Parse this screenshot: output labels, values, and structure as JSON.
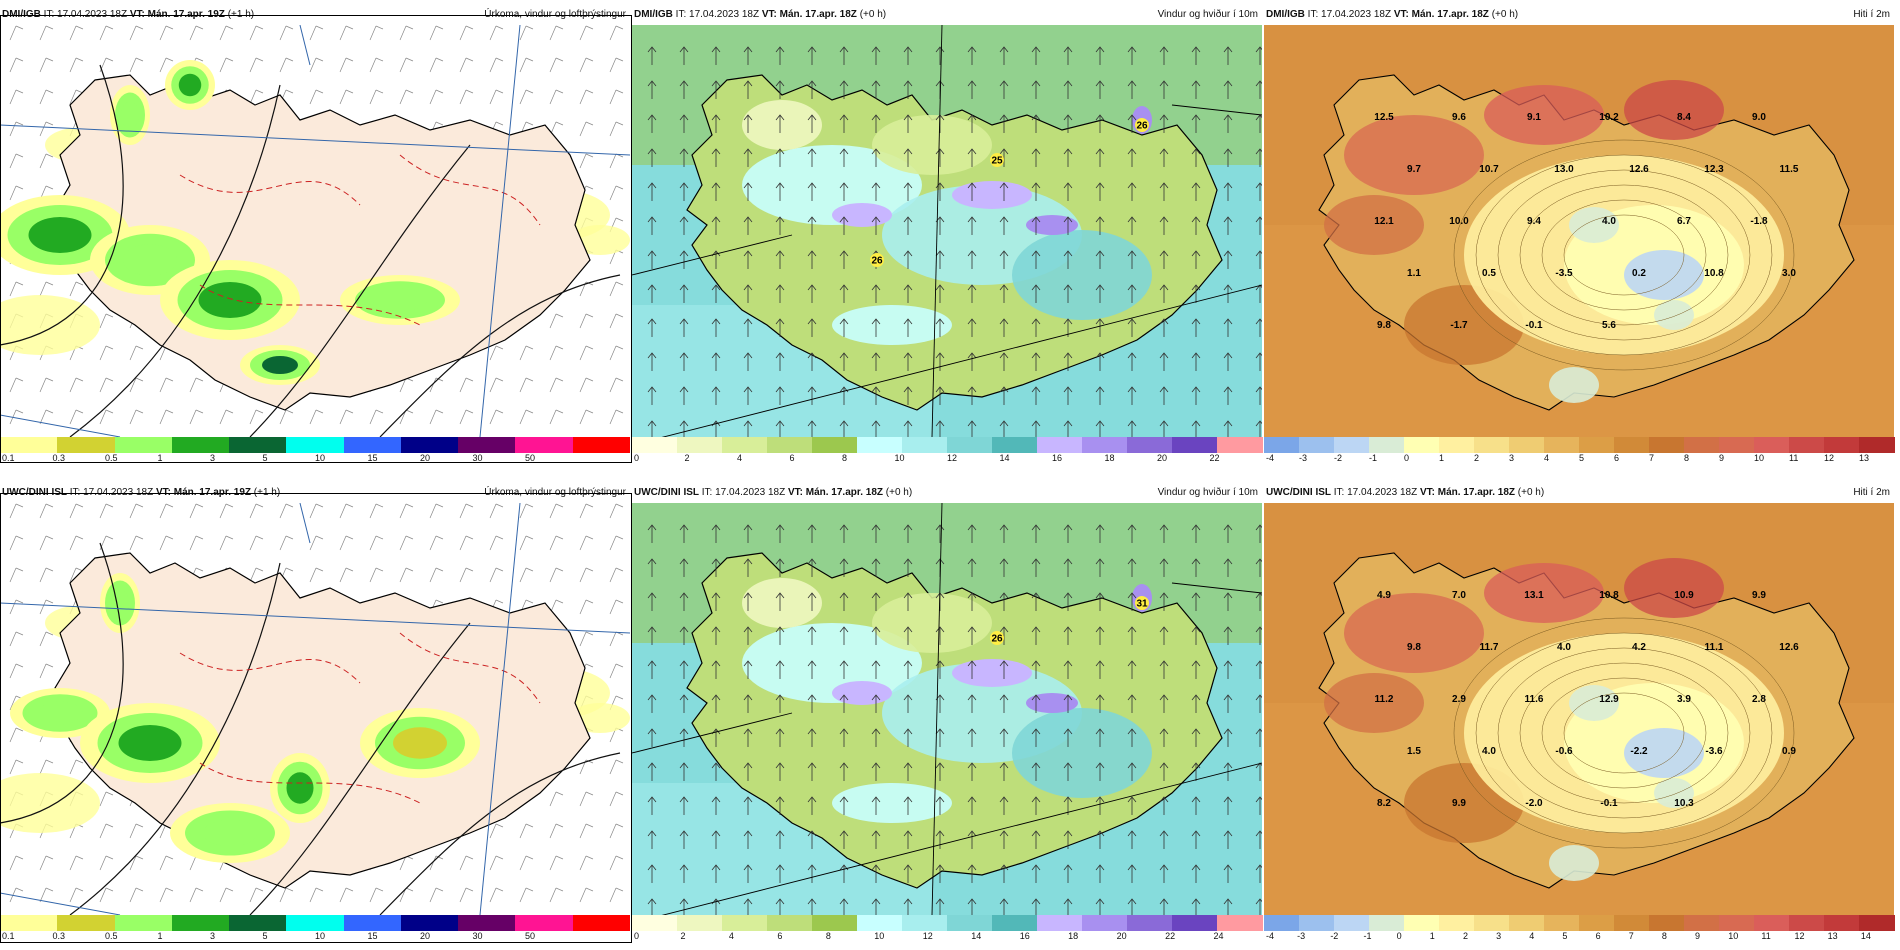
{
  "panels": [
    {
      "id": "p1",
      "left": "DMI/IGB",
      "it": "IT: 17.04.2023 18Z",
      "vt": "VT: Mán. 17.apr. 19Z",
      "offset": "(+1 h)",
      "right": "Úrkoma, vindur og loftþrýstingur",
      "type": "precip",
      "labels": [],
      "ticks": [
        "0.1",
        "0.3",
        "0.5",
        "1",
        "3",
        "5",
        "10",
        "15",
        "20",
        "30",
        "50",
        ""
      ]
    },
    {
      "id": "p2",
      "left": "DMI/IGB",
      "it": "IT: 17.04.2023 18Z",
      "vt": "VT: Mán. 17.apr. 18Z",
      "offset": "(+0 h)",
      "right": "Vindur og hviður í 10m",
      "type": "wind",
      "labels": [
        "25",
        "26",
        "26"
      ],
      "ticks": [
        "0",
        "2",
        "4",
        "6",
        "8",
        "10",
        "12",
        "14",
        "16",
        "18",
        "20",
        "22"
      ]
    },
    {
      "id": "p3",
      "left": "DMI/IGB",
      "it": "IT: 17.04.2023 18Z",
      "vt": "VT: Mán. 17.apr. 18Z",
      "offset": "(+0 h)",
      "right": "Hiti í 2m",
      "type": "temp",
      "labels": [
        "12.5",
        "9.6",
        "9.1",
        "10.2",
        "8.4",
        "9.0",
        "9.7",
        "10.7",
        "13.0",
        "12.6",
        "12.3",
        "11.5",
        "12.1",
        "10.0",
        "9.4",
        "4.0",
        "6.7",
        "-1.8",
        "1.1",
        "0.5",
        "-3.5",
        "0.2",
        "10.8",
        "3.0",
        "9.8",
        "-1.7",
        "-0.1",
        "5.6"
      ],
      "ticks": [
        "-4",
        "-3",
        "-2",
        "-1",
        "0",
        "1",
        "2",
        "3",
        "4",
        "5",
        "6",
        "7",
        "8",
        "9",
        "10",
        "11",
        "12",
        "13"
      ]
    },
    {
      "id": "p4",
      "left": "UWC/DINI ISL",
      "it": "IT: 17.04.2023 18Z",
      "vt": "VT: Mán. 17.apr. 19Z",
      "offset": "(+1 h)",
      "right": "Úrkoma, vindur og loftþrýstingur",
      "type": "precip",
      "labels": [],
      "ticks": [
        "0.1",
        "0.3",
        "0.5",
        "1",
        "3",
        "5",
        "10",
        "15",
        "20",
        "30",
        "50",
        ""
      ]
    },
    {
      "id": "p5",
      "left": "UWC/DINI ISL",
      "it": "IT: 17.04.2023 18Z",
      "vt": "VT: Mán. 17.apr. 18Z",
      "offset": "(+0 h)",
      "right": "Vindur og hviður í 10m",
      "type": "wind",
      "labels": [
        "26",
        "31"
      ],
      "ticks": [
        "0",
        "2",
        "4",
        "6",
        "8",
        "10",
        "12",
        "14",
        "16",
        "18",
        "20",
        "22",
        "24"
      ]
    },
    {
      "id": "p6",
      "left": "UWC/DINI ISL",
      "it": "IT: 17.04.2023 18Z",
      "vt": "VT: Mán. 17.apr. 18Z",
      "offset": "(+0 h)",
      "right": "Hiti í 2m",
      "type": "temp",
      "labels": [
        "4.9",
        "7.0",
        "13.1",
        "10.8",
        "10.9",
        "9.9",
        "9.8",
        "11.7",
        "4.0",
        "4.2",
        "11.1",
        "12.6",
        "11.2",
        "2.9",
        "11.6",
        "12.9",
        "3.9",
        "2.8",
        "1.5",
        "4.0",
        "-0.6",
        "-2.2",
        "-3.6",
        "0.9",
        "8.2",
        "9.9",
        "-2.0",
        "-0.1",
        "10.3"
      ],
      "ticks": [
        "-4",
        "-3",
        "-2",
        "-1",
        "0",
        "1",
        "2",
        "3",
        "4",
        "5",
        "6",
        "7",
        "8",
        "9",
        "10",
        "11",
        "12",
        "13",
        "14"
      ]
    }
  ],
  "colors": {
    "precip": [
      "#ffff99",
      "#d2d232",
      "#99ff66",
      "#22aa22",
      "#0a6633",
      "#00ffee",
      "#3366ff",
      "#000088",
      "#660066",
      "#ff1493",
      "#ff0000"
    ],
    "wind": [
      "#ffffe0",
      "#eef7c0",
      "#d8ee99",
      "#bede7a",
      "#9cc84e",
      "#c8ffff",
      "#a8eeee",
      "#7fd6d6",
      "#52b8b8",
      "#c8b6ff",
      "#a890f0",
      "#8a6ad8",
      "#6a44c0",
      "#ff9aa0"
    ],
    "temp": [
      "#7ba6e8",
      "#9cc0ee",
      "#bcd6f4",
      "#d9ecd6",
      "#ffffb3",
      "#fff0a0",
      "#f7e08a",
      "#efcc72",
      "#e6b45c",
      "#dc9e46",
      "#d18a38",
      "#c87630",
      "#d27046",
      "#d86a52",
      "#da5e5a",
      "#cc4a48",
      "#c23a3a",
      "#b02a2a"
    ]
  },
  "map_colors": {
    "sea_precip": "#ffffff",
    "land_precip": "#fbeadb",
    "sea_wind": "#86dcdc",
    "sea_temp": "#dc9645",
    "land_temp": "#e2b05a"
  }
}
